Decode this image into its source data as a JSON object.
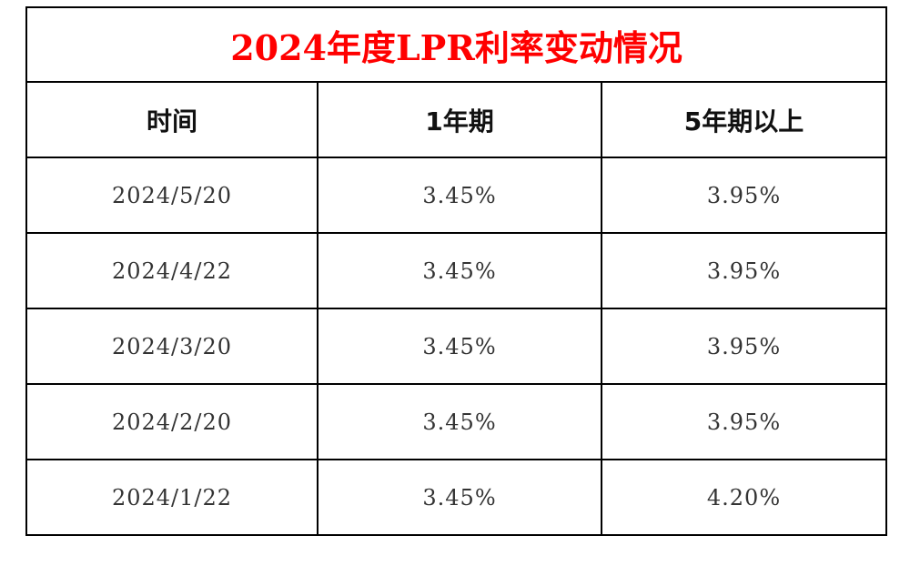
{
  "title": "2024年度LPR利率变动情况",
  "title_color": "#ff0000",
  "headers": {
    "time": "时间",
    "one_year": "1年期",
    "five_year_plus": "5年期以上"
  },
  "rows": [
    {
      "date": "2024/5/20",
      "one_year": "3.45%",
      "five_year_plus": "3.95%"
    },
    {
      "date": "2024/4/22",
      "one_year": "3.45%",
      "five_year_plus": "3.95%"
    },
    {
      "date": "2024/3/20",
      "one_year": "3.45%",
      "five_year_plus": "3.95%"
    },
    {
      "date": "2024/2/20",
      "one_year": "3.45%",
      "five_year_plus": "3.95%"
    },
    {
      "date": "2024/1/22",
      "one_year": "3.45%",
      "five_year_plus": "4.20%"
    }
  ]
}
